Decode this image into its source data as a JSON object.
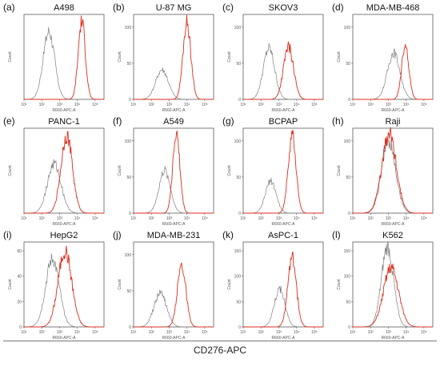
{
  "figure": {
    "shared_x_label": "CD276-APC",
    "colors": {
      "control": "#808080",
      "stained": "#dd2d1c"
    }
  },
  "chart_data": [
    {
      "type": "area",
      "letter": "(a)",
      "title": "A498",
      "ylabel": "Count",
      "xlabel": "R660-APC-A",
      "x_ticks": [
        "10¹",
        "10²",
        "10³",
        "10⁴",
        "10⁵"
      ],
      "y_ticks": [],
      "xlim_log10": [
        1,
        5.5
      ],
      "series": [
        {
          "center": 2.4,
          "width": 0.32,
          "height": 0.8,
          "role": "control"
        },
        {
          "center": 4.25,
          "width": 0.2,
          "height": 0.92,
          "role": "stained"
        }
      ]
    },
    {
      "type": "area",
      "letter": "(b)",
      "title": "U-87 MG",
      "ylabel": "Count",
      "xlabel": "R660-APC-A",
      "x_ticks": [
        "10¹",
        "10²",
        "10³",
        "10⁴",
        "10⁵"
      ],
      "y_ticks": [
        "0",
        "50",
        "100"
      ],
      "xlim_log10": [
        1,
        5.5
      ],
      "series": [
        {
          "center": 2.6,
          "width": 0.35,
          "height": 0.35,
          "role": "control"
        },
        {
          "center": 4.0,
          "width": 0.22,
          "height": 0.9,
          "role": "stained"
        }
      ]
    },
    {
      "type": "area",
      "letter": "(c)",
      "title": "SKOV3",
      "ylabel": "Count",
      "xlabel": "R660-APC-A",
      "x_ticks": [
        "10¹",
        "10²",
        "10³",
        "10⁴",
        "10⁵"
      ],
      "y_ticks": [
        "0",
        "50",
        "100"
      ],
      "xlim_log10": [
        1,
        5.5
      ],
      "series": [
        {
          "center": 2.45,
          "width": 0.32,
          "height": 0.6,
          "role": "control"
        },
        {
          "center": 3.55,
          "width": 0.28,
          "height": 0.62,
          "role": "stained"
        }
      ]
    },
    {
      "type": "area",
      "letter": "(d)",
      "title": "MDA-MB-468",
      "ylabel": "Count",
      "xlabel": "R660-APC-A",
      "x_ticks": [
        "10¹",
        "10²",
        "10³",
        "10⁴",
        "10⁵"
      ],
      "y_ticks": [
        "0",
        "50",
        "100"
      ],
      "xlim_log10": [
        1,
        5.5
      ],
      "series": [
        {
          "center": 3.3,
          "width": 0.35,
          "height": 0.55,
          "role": "control"
        },
        {
          "center": 3.95,
          "width": 0.2,
          "height": 0.65,
          "role": "stained"
        }
      ]
    },
    {
      "type": "area",
      "letter": "(e)",
      "title": "PANC-1",
      "ylabel": "Count",
      "xlabel": "R660-APC-A",
      "x_ticks": [
        "10¹",
        "10²",
        "10³",
        "10⁴",
        "10⁵"
      ],
      "y_ticks": [],
      "xlim_log10": [
        1,
        5.5
      ],
      "series": [
        {
          "center": 2.7,
          "width": 0.38,
          "height": 0.58,
          "role": "control"
        },
        {
          "center": 3.4,
          "width": 0.32,
          "height": 0.92,
          "role": "stained"
        }
      ]
    },
    {
      "type": "area",
      "letter": "(f)",
      "title": "A549",
      "ylabel": "Count",
      "xlabel": "R660-APC-A",
      "x_ticks": [
        "10¹",
        "10²",
        "10³",
        "10⁴",
        "10⁵"
      ],
      "y_ticks": [
        "0",
        "50",
        "100"
      ],
      "xlim_log10": [
        1,
        5.5
      ],
      "series": [
        {
          "center": 2.75,
          "width": 0.32,
          "height": 0.5,
          "role": "control"
        },
        {
          "center": 3.4,
          "width": 0.2,
          "height": 0.92,
          "role": "stained"
        }
      ]
    },
    {
      "type": "area",
      "letter": "(g)",
      "title": "BCPAP",
      "ylabel": "Count",
      "xlabel": "R660-APC-A",
      "x_ticks": [
        "10¹",
        "10²",
        "10³",
        "10⁴",
        "10⁵"
      ],
      "y_ticks": [
        "0",
        "50",
        "100"
      ],
      "xlim_log10": [
        1,
        5.5
      ],
      "series": [
        {
          "center": 2.55,
          "width": 0.3,
          "height": 0.38,
          "role": "control"
        },
        {
          "center": 3.75,
          "width": 0.22,
          "height": 0.92,
          "role": "stained"
        }
      ]
    },
    {
      "type": "area",
      "letter": "(h)",
      "title": "Raji",
      "ylabel": "Count",
      "xlabel": "R660-APC-A",
      "x_ticks": [
        "10¹",
        "10²",
        "10³",
        "10⁴",
        "10⁵"
      ],
      "y_ticks": [
        "0",
        "50",
        "100"
      ],
      "xlim_log10": [
        1,
        5.5
      ],
      "series": [
        {
          "center": 3.0,
          "width": 0.4,
          "height": 0.86,
          "role": "control"
        },
        {
          "center": 3.05,
          "width": 0.4,
          "height": 0.93,
          "role": "stained"
        }
      ]
    },
    {
      "type": "area",
      "letter": "(i)",
      "title": "HepG2",
      "ylabel": "Count",
      "xlabel": "R660-APC-A",
      "x_ticks": [
        "10¹",
        "10²",
        "10³",
        "10⁴",
        "10⁵"
      ],
      "y_ticks": [
        "0",
        "20",
        "40",
        "60"
      ],
      "xlim_log10": [
        1,
        5.5
      ],
      "series": [
        {
          "center": 2.6,
          "width": 0.38,
          "height": 0.8,
          "role": "control"
        },
        {
          "center": 3.3,
          "width": 0.38,
          "height": 0.9,
          "role": "stained"
        }
      ]
    },
    {
      "type": "area",
      "letter": "(j)",
      "title": "MDA-MB-231",
      "ylabel": "Count",
      "xlabel": "R660-APC-A",
      "x_ticks": [
        "10¹",
        "10²",
        "10³",
        "10⁴",
        "10⁵"
      ],
      "y_ticks": [
        "0",
        "50",
        "100"
      ],
      "xlim_log10": [
        1,
        5.5
      ],
      "series": [
        {
          "center": 2.5,
          "width": 0.35,
          "height": 0.4,
          "role": "control"
        },
        {
          "center": 3.7,
          "width": 0.24,
          "height": 0.72,
          "role": "stained"
        }
      ]
    },
    {
      "type": "area",
      "letter": "(k)",
      "title": "AsPC-1",
      "ylabel": "Count",
      "xlabel": "R660-APC-A",
      "x_ticks": [
        "10¹",
        "10²",
        "10³",
        "10⁴",
        "10⁵"
      ],
      "y_ticks": [
        "0",
        "50",
        "100",
        "150"
      ],
      "xlim_log10": [
        1,
        5.5
      ],
      "series": [
        {
          "center": 3.05,
          "width": 0.3,
          "height": 0.45,
          "role": "control"
        },
        {
          "center": 3.75,
          "width": 0.24,
          "height": 0.82,
          "role": "stained"
        }
      ]
    },
    {
      "type": "area",
      "letter": "(l)",
      "title": "K562",
      "ylabel": "Count",
      "xlabel": "R660-APC-A",
      "x_ticks": [
        "10¹",
        "10²",
        "10³",
        "10⁴",
        "10⁵"
      ],
      "y_ticks": [
        "0",
        "50",
        "100",
        "150"
      ],
      "xlim_log10": [
        1,
        5.5
      ],
      "series": [
        {
          "center": 2.95,
          "width": 0.34,
          "height": 0.94,
          "role": "control"
        },
        {
          "center": 3.15,
          "width": 0.42,
          "height": 0.7,
          "role": "stained"
        }
      ]
    }
  ]
}
